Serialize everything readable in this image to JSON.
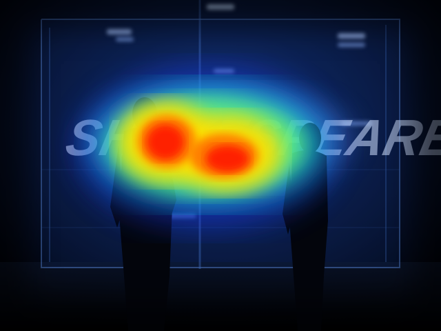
{
  "image": {
    "kind": "video-frame-with-attention-heatmap",
    "sign_text": "SHAKESPEARE",
    "heatmap_overlay": true,
    "colors": {
      "background": "#02040a",
      "glass_glow": "#1e5bd6",
      "neon_blue": "#6ea8ff",
      "heat_low": "#1a3cff",
      "heat_mid": "#18e0d0",
      "heat_high_yellow": "#ffe000",
      "heat_peak_red": "#ff0000"
    }
  }
}
